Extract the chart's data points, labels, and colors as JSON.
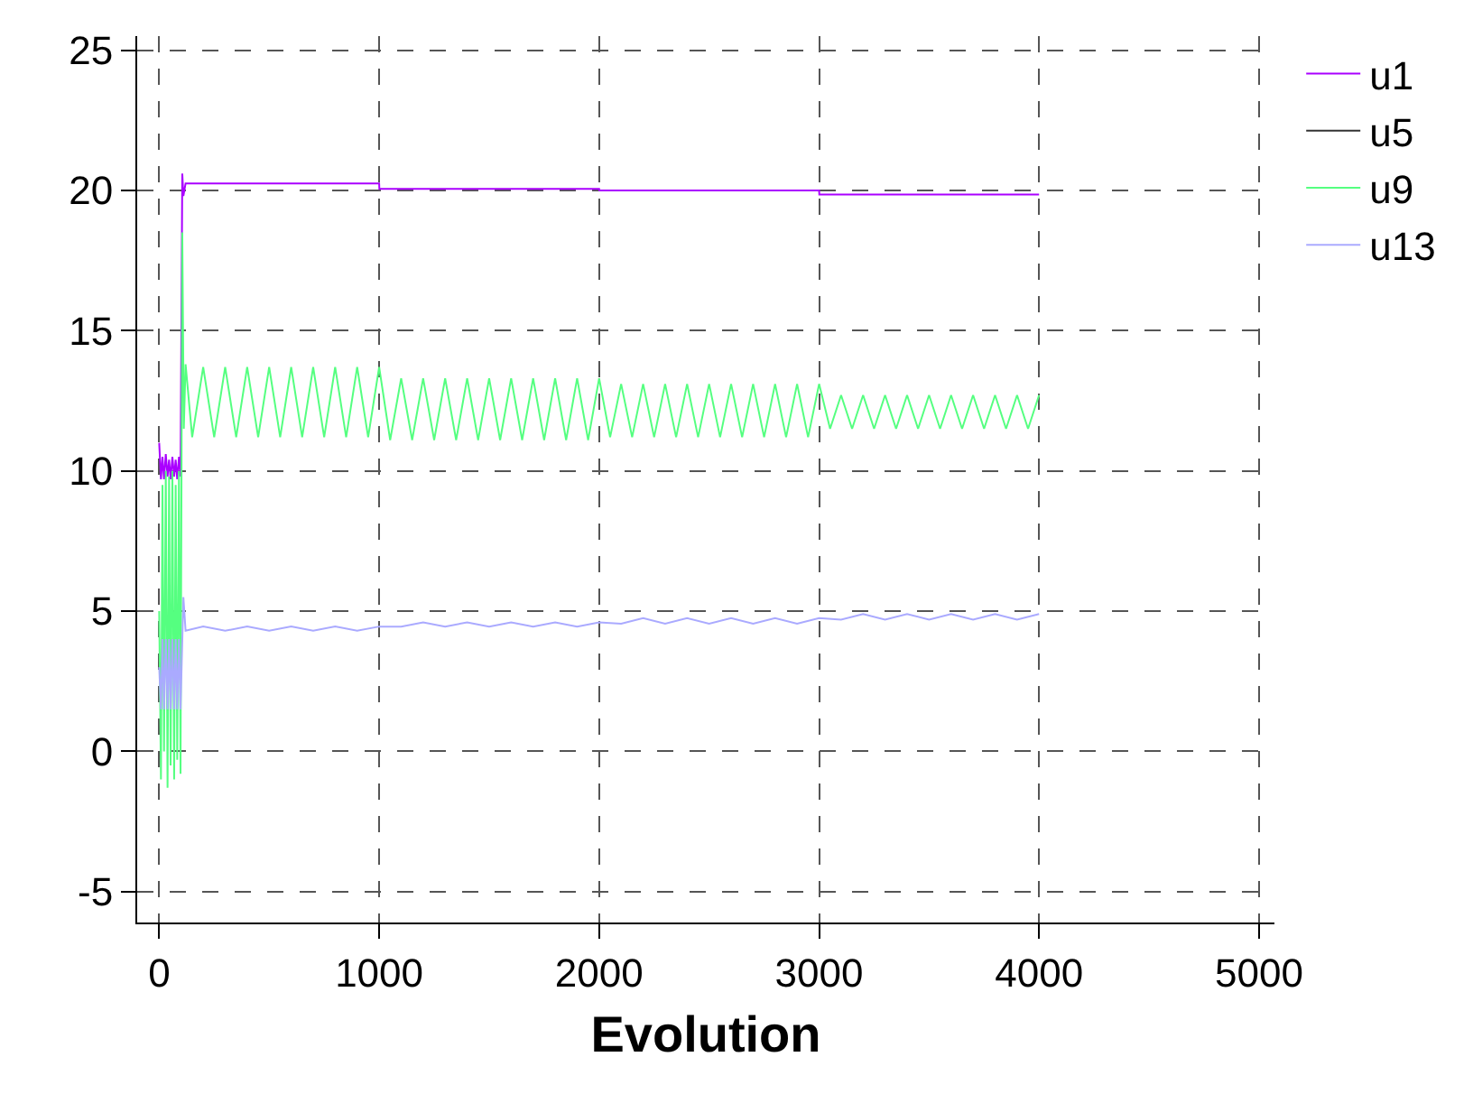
{
  "chart_data": {
    "type": "line",
    "xlabel": "Evolution",
    "xlim": [
      -100,
      5070
    ],
    "ylim": [
      -6.1,
      25.5
    ],
    "xticks": [
      0,
      1000,
      2000,
      3000,
      4000,
      5000
    ],
    "yticks": [
      -5,
      0,
      5,
      10,
      15,
      20,
      25
    ],
    "grid": true,
    "legend": "top right",
    "line_style": "solid",
    "marker": "none",
    "series": [
      {
        "name": "u1",
        "color": "#aa00ff",
        "x": [
          0,
          8,
          15,
          22,
          30,
          38,
          45,
          52,
          60,
          68,
          75,
          82,
          90,
          97,
          105,
          110,
          120,
          1000,
          1001,
          2000,
          2001,
          3000,
          3001,
          4000
        ],
        "values": [
          11,
          9.7,
          10.5,
          9.7,
          10.6,
          9.8,
          10.4,
          9.7,
          10.5,
          9.8,
          10.4,
          9.7,
          10.5,
          9.8,
          20.6,
          19.8,
          20.25,
          20.25,
          20.05,
          20.05,
          20.0,
          20.0,
          19.85,
          19.85
        ]
      },
      {
        "name": "u5",
        "color": "#333333"
      },
      {
        "name": "u9",
        "color": "#55ff80",
        "x": [
          0,
          8,
          15,
          22,
          30,
          38,
          45,
          52,
          60,
          68,
          75,
          82,
          90,
          97,
          105,
          112,
          120,
          150,
          200,
          250,
          300,
          350,
          400,
          450,
          500,
          550,
          600,
          650,
          700,
          750,
          800,
          850,
          900,
          950,
          1000,
          1050,
          1100,
          1150,
          1200,
          1250,
          1300,
          1350,
          1400,
          1450,
          1500,
          1550,
          1600,
          1650,
          1700,
          1750,
          1800,
          1850,
          1900,
          1950,
          2000,
          2050,
          2100,
          2150,
          2200,
          2250,
          2300,
          2350,
          2400,
          2450,
          2500,
          2550,
          2600,
          2650,
          2700,
          2750,
          2800,
          2850,
          2900,
          2950,
          3000,
          3050,
          3100,
          3150,
          3200,
          3250,
          3300,
          3350,
          3400,
          3450,
          3500,
          3550,
          3600,
          3650,
          3700,
          3750,
          3800,
          3850,
          3900,
          3950,
          4000
        ],
        "values": [
          5,
          -1,
          9.5,
          0,
          10,
          -1.3,
          9.8,
          -0.5,
          10,
          -1,
          9.5,
          -0.3,
          10,
          -0.8,
          18.5,
          11.5,
          13.8,
          11.2,
          13.7,
          11.2,
          13.7,
          11.2,
          13.7,
          11.2,
          13.7,
          11.2,
          13.7,
          11.2,
          13.7,
          11.2,
          13.7,
          11.2,
          13.7,
          11.2,
          13.7,
          11.1,
          13.3,
          11.1,
          13.3,
          11.1,
          13.3,
          11.1,
          13.3,
          11.1,
          13.3,
          11.1,
          13.3,
          11.1,
          13.3,
          11.1,
          13.3,
          11.1,
          13.3,
          11.1,
          13.3,
          11.2,
          13.1,
          11.2,
          13.1,
          11.2,
          13.1,
          11.2,
          13.1,
          11.2,
          13.1,
          11.2,
          13.1,
          11.2,
          13.1,
          11.2,
          13.1,
          11.2,
          13.1,
          11.2,
          13.1,
          11.5,
          12.7,
          11.5,
          12.7,
          11.5,
          12.7,
          11.5,
          12.7,
          11.5,
          12.7,
          11.5,
          12.7,
          11.5,
          12.7,
          11.5,
          12.7,
          11.5,
          12.7,
          11.5,
          12.7
        ]
      },
      {
        "name": "u13",
        "color": "#aaaaff",
        "x": [
          0,
          8,
          15,
          22,
          30,
          38,
          45,
          52,
          60,
          68,
          75,
          82,
          90,
          97,
          110,
          120,
          200,
          300,
          400,
          500,
          600,
          700,
          800,
          900,
          1000,
          1100,
          1200,
          1300,
          1400,
          1500,
          1600,
          1700,
          1800,
          1900,
          2000,
          2100,
          2200,
          2300,
          2400,
          2500,
          2600,
          2700,
          2800,
          2900,
          3000,
          3100,
          3200,
          3300,
          3400,
          3500,
          3600,
          3700,
          3800,
          3900,
          4000
        ],
        "values": [
          3,
          1.5,
          4,
          1.5,
          4,
          1.5,
          4,
          1.5,
          4,
          1.5,
          4,
          1.5,
          4,
          1.5,
          5.5,
          4.3,
          4.45,
          4.3,
          4.45,
          4.3,
          4.45,
          4.3,
          4.45,
          4.3,
          4.45,
          4.45,
          4.6,
          4.45,
          4.6,
          4.45,
          4.6,
          4.45,
          4.6,
          4.45,
          4.6,
          4.55,
          4.75,
          4.55,
          4.75,
          4.55,
          4.75,
          4.55,
          4.75,
          4.55,
          4.75,
          4.7,
          4.9,
          4.7,
          4.9,
          4.7,
          4.9,
          4.7,
          4.9,
          4.7,
          4.9
        ]
      }
    ]
  }
}
